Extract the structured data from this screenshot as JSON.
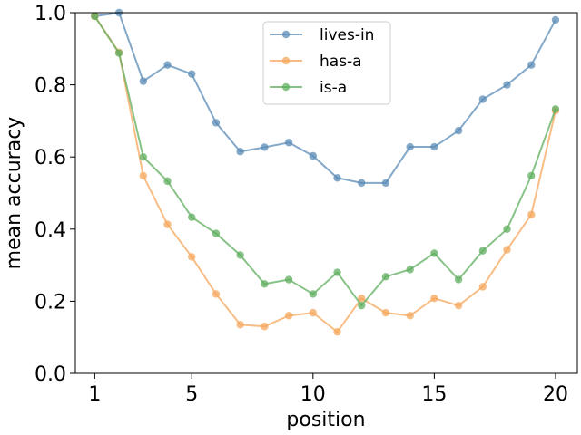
{
  "chart_data": {
    "type": "line",
    "title": "",
    "xlabel": "position",
    "ylabel": "mean accuracy",
    "xlim": [
      0.2,
      20.9
    ],
    "ylim": [
      0.0,
      1.0
    ],
    "xticks": [
      1,
      5,
      10,
      15,
      20
    ],
    "yticks": [
      0.0,
      0.2,
      0.4,
      0.6,
      0.8,
      1.0
    ],
    "ytick_labels": [
      "0.0",
      "0.2",
      "0.4",
      "0.6",
      "0.8",
      "1.0"
    ],
    "grid": false,
    "legend_position": "top-center",
    "x": [
      1,
      2,
      3,
      4,
      5,
      6,
      7,
      8,
      9,
      10,
      11,
      12,
      13,
      14,
      15,
      16,
      17,
      18,
      19,
      20
    ],
    "series": [
      {
        "name": "lives-in",
        "color": "#5b8bb5",
        "values": [
          0.99,
          1.0,
          0.81,
          0.855,
          0.83,
          0.695,
          0.615,
          0.627,
          0.64,
          0.603,
          0.542,
          0.528,
          0.528,
          0.628,
          0.628,
          0.673,
          0.76,
          0.8,
          0.855,
          0.98
        ]
      },
      {
        "name": "has-a",
        "color": "#f5a75c",
        "values": [
          0.99,
          0.89,
          0.548,
          0.413,
          0.323,
          0.22,
          0.135,
          0.13,
          0.16,
          0.168,
          0.115,
          0.208,
          0.168,
          0.16,
          0.208,
          0.188,
          0.24,
          0.343,
          0.44,
          0.728
        ]
      },
      {
        "name": "is-a",
        "color": "#5fae5f",
        "values": [
          0.99,
          0.888,
          0.6,
          0.533,
          0.433,
          0.388,
          0.328,
          0.248,
          0.26,
          0.22,
          0.28,
          0.188,
          0.268,
          0.288,
          0.333,
          0.26,
          0.34,
          0.4,
          0.548,
          0.733
        ]
      }
    ]
  }
}
